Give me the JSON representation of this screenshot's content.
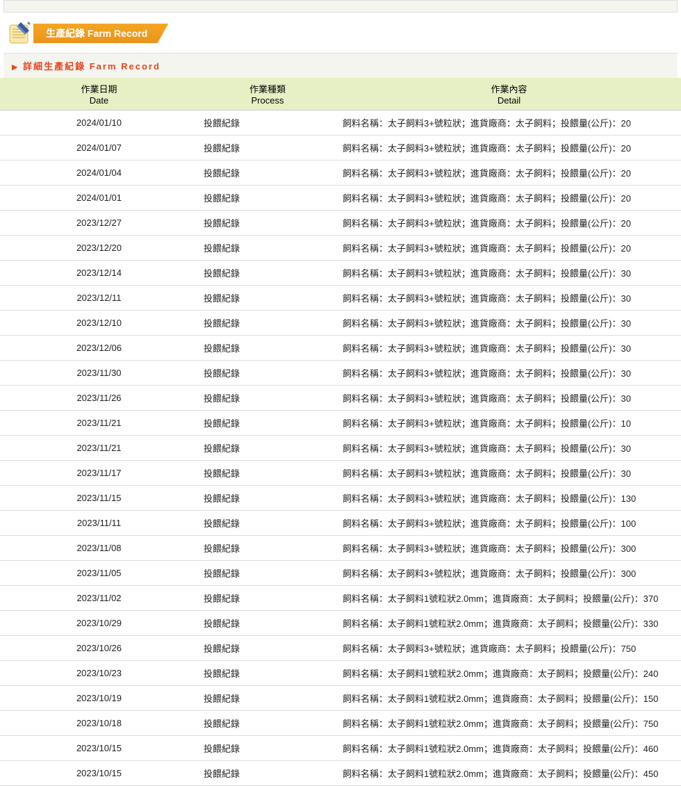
{
  "banner": {
    "title": "生產紀錄 Farm Record"
  },
  "section": {
    "title": "詳細生產紀錄 Farm Record"
  },
  "table": {
    "headers": {
      "date": {
        "zh": "作業日期",
        "en": "Date"
      },
      "process": {
        "zh": "作業種類",
        "en": "Process"
      },
      "detail": {
        "zh": "作業內容",
        "en": "Detail"
      }
    },
    "rows": [
      {
        "date": "2024/01/10",
        "process": "投餵紀錄",
        "detail": "飼料名稱：太子飼料3+號粒狀；進貨廠商：太子飼料；投餵量(公斤)：20"
      },
      {
        "date": "2024/01/07",
        "process": "投餵紀錄",
        "detail": "飼料名稱：太子飼料3+號粒狀；進貨廠商：太子飼料；投餵量(公斤)：20"
      },
      {
        "date": "2024/01/04",
        "process": "投餵紀錄",
        "detail": "飼料名稱：太子飼料3+號粒狀；進貨廠商：太子飼料；投餵量(公斤)：20"
      },
      {
        "date": "2024/01/01",
        "process": "投餵紀錄",
        "detail": "飼料名稱：太子飼料3+號粒狀；進貨廠商：太子飼料；投餵量(公斤)：20"
      },
      {
        "date": "2023/12/27",
        "process": "投餵紀錄",
        "detail": "飼料名稱：太子飼料3+號粒狀；進貨廠商：太子飼料；投餵量(公斤)：20"
      },
      {
        "date": "2023/12/20",
        "process": "投餵紀錄",
        "detail": "飼料名稱：太子飼料3+號粒狀；進貨廠商：太子飼料；投餵量(公斤)：20"
      },
      {
        "date": "2023/12/14",
        "process": "投餵紀錄",
        "detail": "飼料名稱：太子飼料3+號粒狀；進貨廠商：太子飼料；投餵量(公斤)：30"
      },
      {
        "date": "2023/12/11",
        "process": "投餵紀錄",
        "detail": "飼料名稱：太子飼料3+號粒狀；進貨廠商：太子飼料；投餵量(公斤)：30"
      },
      {
        "date": "2023/12/10",
        "process": "投餵紀錄",
        "detail": "飼料名稱：太子飼料3+號粒狀；進貨廠商：太子飼料；投餵量(公斤)：30"
      },
      {
        "date": "2023/12/06",
        "process": "投餵紀錄",
        "detail": "飼料名稱：太子飼料3+號粒狀；進貨廠商：太子飼料；投餵量(公斤)：30"
      },
      {
        "date": "2023/11/30",
        "process": "投餵紀錄",
        "detail": "飼料名稱：太子飼料3+號粒狀；進貨廠商：太子飼料；投餵量(公斤)：30"
      },
      {
        "date": "2023/11/26",
        "process": "投餵紀錄",
        "detail": "飼料名稱：太子飼料3+號粒狀；進貨廠商：太子飼料；投餵量(公斤)：30"
      },
      {
        "date": "2023/11/21",
        "process": "投餵紀錄",
        "detail": "飼料名稱：太子飼料3+號粒狀；進貨廠商：太子飼料；投餵量(公斤)：10"
      },
      {
        "date": "2023/11/21",
        "process": "投餵紀錄",
        "detail": "飼料名稱：太子飼料3+號粒狀；進貨廠商：太子飼料；投餵量(公斤)：30"
      },
      {
        "date": "2023/11/17",
        "process": "投餵紀錄",
        "detail": "飼料名稱：太子飼料3+號粒狀；進貨廠商：太子飼料；投餵量(公斤)：30"
      },
      {
        "date": "2023/11/15",
        "process": "投餵紀錄",
        "detail": "飼料名稱：太子飼料3+號粒狀；進貨廠商：太子飼料；投餵量(公斤)：130"
      },
      {
        "date": "2023/11/11",
        "process": "投餵紀錄",
        "detail": "飼料名稱：太子飼料3+號粒狀；進貨廠商：太子飼料；投餵量(公斤)：100"
      },
      {
        "date": "2023/11/08",
        "process": "投餵紀錄",
        "detail": "飼料名稱：太子飼料3+號粒狀；進貨廠商：太子飼料；投餵量(公斤)：300"
      },
      {
        "date": "2023/11/05",
        "process": "投餵紀錄",
        "detail": "飼料名稱：太子飼料3+號粒狀；進貨廠商：太子飼料；投餵量(公斤)：300"
      },
      {
        "date": "2023/11/02",
        "process": "投餵紀錄",
        "detail": "飼料名稱：太子飼料1號粒狀2.0mm；進貨廠商：太子飼料；投餵量(公斤)：370"
      },
      {
        "date": "2023/10/29",
        "process": "投餵紀錄",
        "detail": "飼料名稱：太子飼料1號粒狀2.0mm；進貨廠商：太子飼料；投餵量(公斤)：330"
      },
      {
        "date": "2023/10/26",
        "process": "投餵紀錄",
        "detail": "飼料名稱：太子飼料3+號粒狀；進貨廠商：太子飼料；投餵量(公斤)：750"
      },
      {
        "date": "2023/10/23",
        "process": "投餵紀錄",
        "detail": "飼料名稱：太子飼料1號粒狀2.0mm；進貨廠商：太子飼料；投餵量(公斤)：240"
      },
      {
        "date": "2023/10/19",
        "process": "投餵紀錄",
        "detail": "飼料名稱：太子飼料1號粒狀2.0mm；進貨廠商：太子飼料；投餵量(公斤)：150"
      },
      {
        "date": "2023/10/18",
        "process": "投餵紀錄",
        "detail": "飼料名稱：太子飼料1號粒狀2.0mm；進貨廠商：太子飼料；投餵量(公斤)：750"
      },
      {
        "date": "2023/10/15",
        "process": "投餵紀錄",
        "detail": "飼料名稱：太子飼料1號粒狀2.0mm；進貨廠商：太子飼料；投餵量(公斤)：460"
      },
      {
        "date": "2023/10/15",
        "process": "投餵紀錄",
        "detail": "飼料名稱：太子飼料1號粒狀2.0mm；進貨廠商：太子飼料；投餵量(公斤)：450"
      }
    ]
  },
  "colors": {
    "banner_gradient_top": "#f5a623",
    "banner_gradient_bottom": "#e8941b",
    "section_text": "#e84520",
    "header_bg": "#e7f0c4",
    "row_border": "#dddddd"
  }
}
